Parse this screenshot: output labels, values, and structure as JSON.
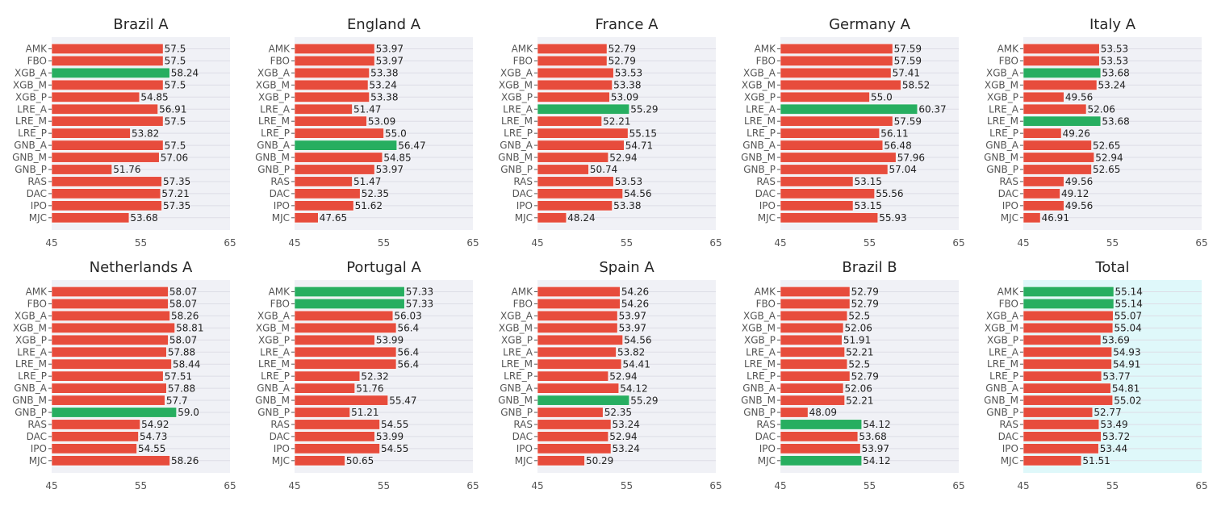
{
  "chart_data": [
    {
      "type": "bar",
      "orientation": "horizontal",
      "title": "Brazil A",
      "categories": [
        "AMK",
        "FBO",
        "XGB_A",
        "XGB_M",
        "XGB_P",
        "LRE_A",
        "LRE_M",
        "LRE_P",
        "GNB_A",
        "GNB_M",
        "GNB_P",
        "RAS",
        "DAC",
        "IPO",
        "MJC"
      ],
      "values": [
        57.5,
        57.5,
        58.24,
        57.5,
        54.85,
        56.91,
        57.5,
        53.82,
        57.5,
        57.06,
        51.76,
        57.35,
        57.21,
        57.35,
        53.68
      ],
      "labels": [
        "57.5",
        "57.5",
        "58.24",
        "57.5",
        "54.85",
        "56.91",
        "57.5",
        "53.82",
        "57.5",
        "57.06",
        "51.76",
        "57.35",
        "57.21",
        "57.35",
        "53.68"
      ],
      "highlight": [
        2
      ],
      "xlim": [
        45,
        65
      ],
      "xticks": [
        "45",
        "55",
        "65"
      ],
      "background": "#f0f1f6"
    },
    {
      "type": "bar",
      "orientation": "horizontal",
      "title": "England A",
      "categories": [
        "AMK",
        "FBO",
        "XGB_A",
        "XGB_M",
        "XGB_P",
        "LRE_A",
        "LRE_M",
        "LRE_P",
        "GNB_A",
        "GNB_M",
        "GNB_P",
        "RAS",
        "DAC",
        "IPO",
        "MJC"
      ],
      "values": [
        53.97,
        53.97,
        53.38,
        53.24,
        53.38,
        51.47,
        53.09,
        55.0,
        56.47,
        54.85,
        53.97,
        51.47,
        52.35,
        51.62,
        47.65
      ],
      "labels": [
        "53.97",
        "53.97",
        "53.38",
        "53.24",
        "53.38",
        "51.47",
        "53.09",
        "55.0",
        "56.47",
        "54.85",
        "53.97",
        "51.47",
        "52.35",
        "51.62",
        "47.65"
      ],
      "highlight": [
        8
      ],
      "xlim": [
        45,
        65
      ],
      "xticks": [
        "45",
        "55",
        "65"
      ],
      "background": "#f0f1f6"
    },
    {
      "type": "bar",
      "orientation": "horizontal",
      "title": "France A",
      "categories": [
        "AMK",
        "FBO",
        "XGB_A",
        "XGB_M",
        "XGB_P",
        "LRE_A",
        "LRE_M",
        "LRE_P",
        "GNB_A",
        "GNB_M",
        "GNB_P",
        "RAS",
        "DAC",
        "IPO",
        "MJC"
      ],
      "values": [
        52.79,
        52.79,
        53.53,
        53.38,
        53.09,
        55.29,
        52.21,
        55.15,
        54.71,
        52.94,
        50.74,
        53.53,
        54.56,
        53.38,
        48.24
      ],
      "labels": [
        "52.79",
        "52.79",
        "53.53",
        "53.38",
        "53.09",
        "55.29",
        "52.21",
        "55.15",
        "54.71",
        "52.94",
        "50.74",
        "53.53",
        "54.56",
        "53.38",
        "48.24"
      ],
      "highlight": [
        5
      ],
      "xlim": [
        45,
        65
      ],
      "xticks": [
        "45",
        "55",
        "65"
      ],
      "background": "#f0f1f6"
    },
    {
      "type": "bar",
      "orientation": "horizontal",
      "title": "Germany A",
      "categories": [
        "AMK",
        "FBO",
        "XGB_A",
        "XGB_M",
        "XGB_P",
        "LRE_A",
        "LRE_M",
        "LRE_P",
        "GNB_A",
        "GNB_M",
        "GNB_P",
        "RAS",
        "DAC",
        "IPO",
        "MJC"
      ],
      "values": [
        57.59,
        57.59,
        57.41,
        58.52,
        55.0,
        60.37,
        57.59,
        56.11,
        56.48,
        57.96,
        57.04,
        53.15,
        55.56,
        53.15,
        55.93
      ],
      "labels": [
        "57.59",
        "57.59",
        "57.41",
        "58.52",
        "55.0",
        "60.37",
        "57.59",
        "56.11",
        "56.48",
        "57.96",
        "57.04",
        "53.15",
        "55.56",
        "53.15",
        "55.93"
      ],
      "highlight": [
        5
      ],
      "xlim": [
        45,
        65
      ],
      "xticks": [
        "45",
        "55",
        "65"
      ],
      "background": "#f0f1f6"
    },
    {
      "type": "bar",
      "orientation": "horizontal",
      "title": "Italy A",
      "categories": [
        "AMK",
        "FBO",
        "XGB_A",
        "XGB_M",
        "XGB_P",
        "LRE_A",
        "LRE_M",
        "LRE_P",
        "GNB_A",
        "GNB_M",
        "GNB_P",
        "RAS",
        "DAC",
        "IPO",
        "MJC"
      ],
      "values": [
        53.53,
        53.53,
        53.68,
        53.24,
        49.56,
        52.06,
        53.68,
        49.26,
        52.65,
        52.94,
        52.65,
        49.56,
        49.12,
        49.56,
        46.91
      ],
      "labels": [
        "53.53",
        "53.53",
        "53.68",
        "53.24",
        "49.56",
        "52.06",
        "53.68",
        "49.26",
        "52.65",
        "52.94",
        "52.65",
        "49.56",
        "49.12",
        "49.56",
        "46.91"
      ],
      "highlight": [
        2,
        6
      ],
      "xlim": [
        45,
        65
      ],
      "xticks": [
        "45",
        "55",
        "65"
      ],
      "background": "#f0f1f6"
    },
    {
      "type": "bar",
      "orientation": "horizontal",
      "title": "Netherlands A",
      "categories": [
        "AMK",
        "FBO",
        "XGB_A",
        "XGB_M",
        "XGB_P",
        "LRE_A",
        "LRE_M",
        "LRE_P",
        "GNB_A",
        "GNB_M",
        "GNB_P",
        "RAS",
        "DAC",
        "IPO",
        "MJC"
      ],
      "values": [
        58.07,
        58.07,
        58.26,
        58.81,
        58.07,
        57.88,
        58.44,
        57.51,
        57.88,
        57.7,
        59.0,
        54.92,
        54.73,
        54.55,
        58.26
      ],
      "labels": [
        "58.07",
        "58.07",
        "58.26",
        "58.81",
        "58.07",
        "57.88",
        "58.44",
        "57.51",
        "57.88",
        "57.7",
        "59.0",
        "54.92",
        "54.73",
        "54.55",
        "58.26"
      ],
      "highlight": [
        10
      ],
      "xlim": [
        45,
        65
      ],
      "xticks": [
        "45",
        "55",
        "65"
      ],
      "background": "#f0f1f6"
    },
    {
      "type": "bar",
      "orientation": "horizontal",
      "title": "Portugal A",
      "categories": [
        "AMK",
        "FBO",
        "XGB_A",
        "XGB_M",
        "XGB_P",
        "LRE_A",
        "LRE_M",
        "LRE_P",
        "GNB_A",
        "GNB_M",
        "GNB_P",
        "RAS",
        "DAC",
        "IPO",
        "MJC"
      ],
      "values": [
        57.33,
        57.33,
        56.03,
        56.4,
        53.99,
        56.4,
        56.4,
        52.32,
        51.76,
        55.47,
        51.21,
        54.55,
        53.99,
        54.55,
        50.65
      ],
      "labels": [
        "57.33",
        "57.33",
        "56.03",
        "56.4",
        "53.99",
        "56.4",
        "56.4",
        "52.32",
        "51.76",
        "55.47",
        "51.21",
        "54.55",
        "53.99",
        "54.55",
        "50.65"
      ],
      "highlight": [
        0,
        1
      ],
      "xlim": [
        45,
        65
      ],
      "xticks": [
        "45",
        "55",
        "65"
      ],
      "background": "#f0f1f6"
    },
    {
      "type": "bar",
      "orientation": "horizontal",
      "title": "Spain A",
      "categories": [
        "AMK",
        "FBO",
        "XGB_A",
        "XGB_M",
        "XGB_P",
        "LRE_A",
        "LRE_M",
        "LRE_P",
        "GNB_A",
        "GNB_M",
        "GNB_P",
        "RAS",
        "DAC",
        "IPO",
        "MJC"
      ],
      "values": [
        54.26,
        54.26,
        53.97,
        53.97,
        54.56,
        53.82,
        54.41,
        52.94,
        54.12,
        55.29,
        52.35,
        53.24,
        52.94,
        53.24,
        50.29
      ],
      "labels": [
        "54.26",
        "54.26",
        "53.97",
        "53.97",
        "54.56",
        "53.82",
        "54.41",
        "52.94",
        "54.12",
        "55.29",
        "52.35",
        "53.24",
        "52.94",
        "53.24",
        "50.29"
      ],
      "highlight": [
        9
      ],
      "xlim": [
        45,
        65
      ],
      "xticks": [
        "45",
        "55",
        "65"
      ],
      "background": "#f0f1f6"
    },
    {
      "type": "bar",
      "orientation": "horizontal",
      "title": "Brazil B",
      "categories": [
        "AMK",
        "FBO",
        "XGB_A",
        "XGB_M",
        "XGB_P",
        "LRE_A",
        "LRE_M",
        "LRE_P",
        "GNB_A",
        "GNB_M",
        "GNB_P",
        "RAS",
        "DAC",
        "IPO",
        "MJC"
      ],
      "values": [
        52.79,
        52.79,
        52.5,
        52.06,
        51.91,
        52.21,
        52.5,
        52.79,
        52.06,
        52.21,
        48.09,
        54.12,
        53.68,
        53.97,
        54.12
      ],
      "labels": [
        "52.79",
        "52.79",
        "52.5",
        "52.06",
        "51.91",
        "52.21",
        "52.5",
        "52.79",
        "52.06",
        "52.21",
        "48.09",
        "54.12",
        "53.68",
        "53.97",
        "54.12"
      ],
      "highlight": [
        11,
        14
      ],
      "xlim": [
        45,
        65
      ],
      "xticks": [
        "45",
        "55",
        "65"
      ],
      "background": "#f0f1f6"
    },
    {
      "type": "bar",
      "orientation": "horizontal",
      "title": "Total",
      "categories": [
        "AMK",
        "FBO",
        "XGB_A",
        "XGB_M",
        "XGB_P",
        "LRE_A",
        "LRE_M",
        "LRE_P",
        "GNB_A",
        "GNB_M",
        "GNB_P",
        "RAS",
        "DAC",
        "IPO",
        "MJC"
      ],
      "values": [
        55.14,
        55.14,
        55.07,
        55.04,
        53.69,
        54.93,
        54.91,
        53.77,
        54.81,
        55.02,
        52.77,
        53.49,
        53.72,
        53.44,
        51.51
      ],
      "labels": [
        "55.14",
        "55.14",
        "55.07",
        "55.04",
        "53.69",
        "54.93",
        "54.91",
        "53.77",
        "54.81",
        "55.02",
        "52.77",
        "53.49",
        "53.72",
        "53.44",
        "51.51"
      ],
      "highlight": [
        0,
        1
      ],
      "xlim": [
        45,
        65
      ],
      "xticks": [
        "45",
        "55",
        "65"
      ],
      "background": "#dff8fa"
    }
  ],
  "colors": {
    "bar": "#e74c3c",
    "highlight": "#27ae60",
    "grid": "#dddde6"
  }
}
